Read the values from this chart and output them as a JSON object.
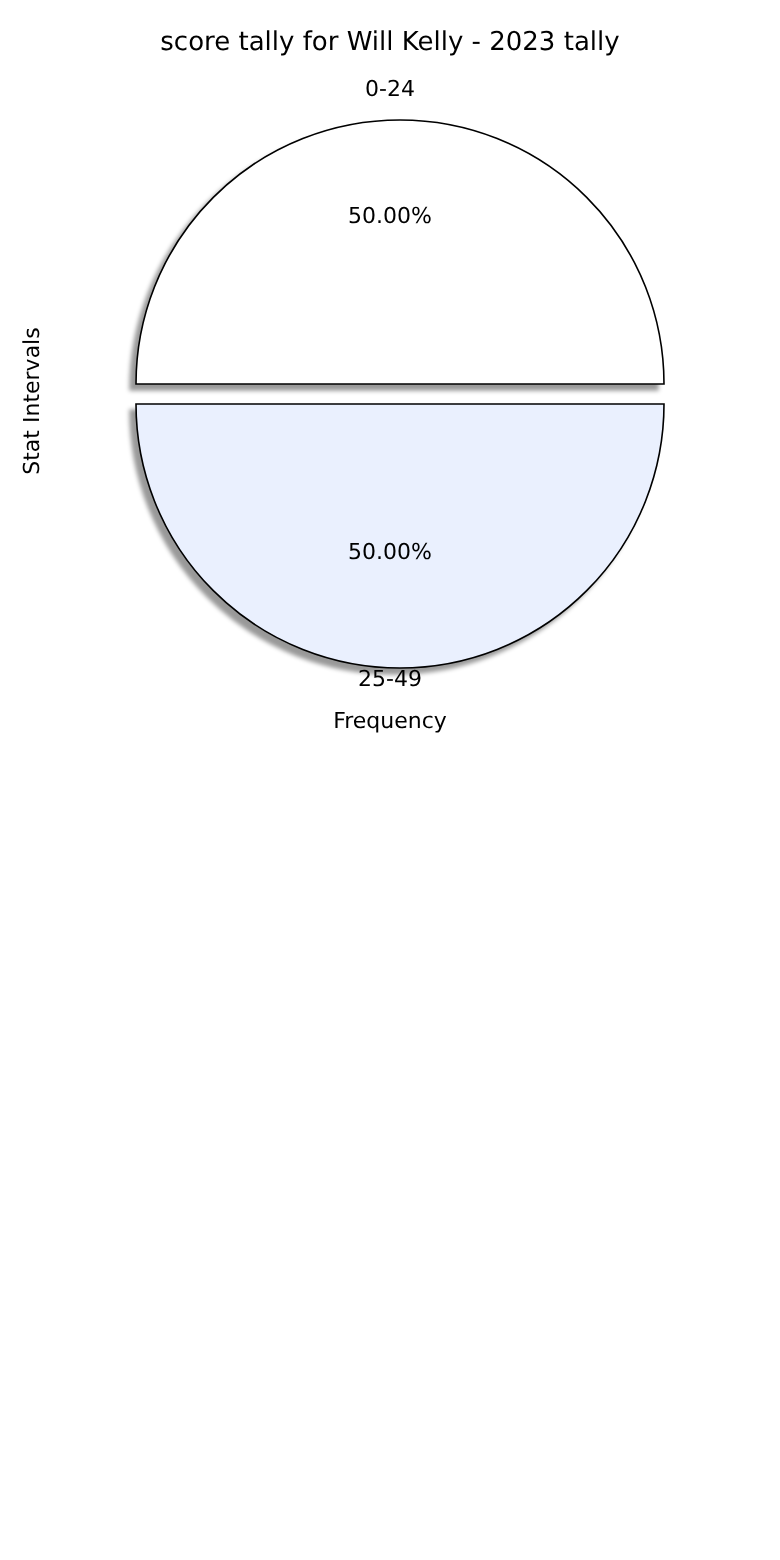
{
  "chart_data": {
    "type": "pie",
    "title": "score tally for Will Kelly - 2023 tally",
    "xlabel": "Frequency",
    "ylabel": "Stat Intervals",
    "categories": [
      "0-24",
      "25-49"
    ],
    "values": [
      50,
      50
    ],
    "colors": [
      "#ffffff",
      "#eaf0fe"
    ],
    "value_labels": [
      "50.00%",
      "50.00%"
    ],
    "legend": false
  }
}
